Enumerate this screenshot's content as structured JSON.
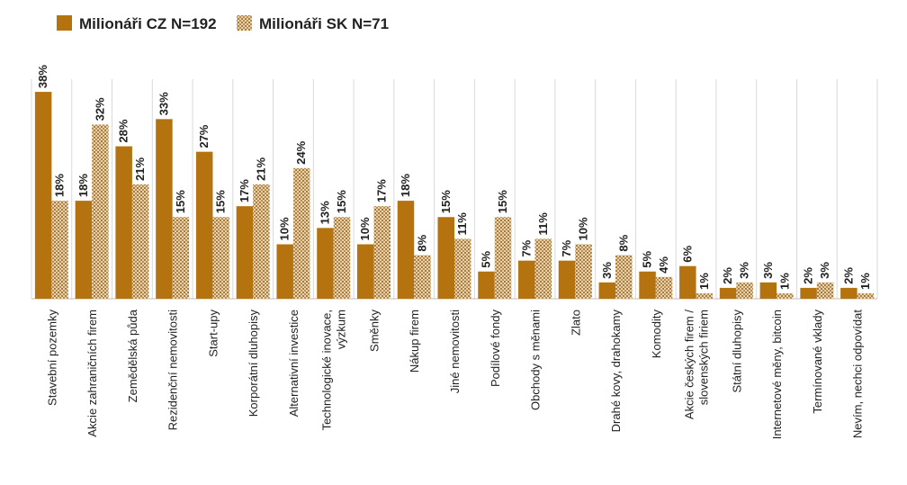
{
  "chart_data": {
    "type": "bar",
    "title": "",
    "xlabel": "",
    "ylabel": "",
    "ylim": [
      0,
      40
    ],
    "grid": "vertical separators",
    "legend_position": "top-left",
    "categories": [
      "Stavební pozemky",
      "Akcie zahraničních firem",
      "Zemědělská půda",
      "Rezidenční nemovitosti",
      "Start-upy",
      "Korporátní dluhopisy",
      "Alternativní investice",
      "Technologické inovace, výzkum",
      "Směnky",
      "Nákup firem",
      "Jiné nemovitosti",
      "Podílové fondy",
      "Obchody s měnami",
      "Zlato",
      "Drahé kovy, drahokamy",
      "Komodity",
      "Akcie českých firem / slovenských firiem",
      "Státní dluhopisy",
      "Internetové měny, bitcoin",
      "Termínované vklady",
      "Nevím, nechci odpovídat"
    ],
    "series": [
      {
        "name": "Milionáři CZ N=192",
        "color": "#b5730f",
        "pattern": "solid",
        "values": [
          38,
          18,
          28,
          33,
          27,
          17,
          10,
          13,
          10,
          18,
          15,
          5,
          7,
          7,
          3,
          5,
          6,
          2,
          3,
          2,
          2
        ],
        "labels": [
          "38%",
          "18%",
          "28%",
          "33%",
          "27%",
          "17%",
          "10%",
          "13%",
          "10%",
          "18%",
          "15%",
          "5%",
          "7%",
          "7%",
          "3%",
          "5%",
          "6%",
          "2%",
          "3%",
          "2%",
          "2%"
        ]
      },
      {
        "name": "Milionáři SK N=71",
        "color": "#c9a46b",
        "pattern": "dotted",
        "values": [
          18,
          32,
          21,
          15,
          15,
          21,
          24,
          15,
          17,
          8,
          11,
          15,
          11,
          10,
          8,
          4,
          1,
          3,
          1,
          3,
          1
        ],
        "labels": [
          "18%",
          "32%",
          "21%",
          "15%",
          "15%",
          "21%",
          "24%",
          "15%",
          "17%",
          "8%",
          "11%",
          "15%",
          "11%",
          "10%",
          "8%",
          "4%",
          "1%",
          "3%",
          "1%",
          "3%",
          "1%"
        ]
      }
    ]
  }
}
